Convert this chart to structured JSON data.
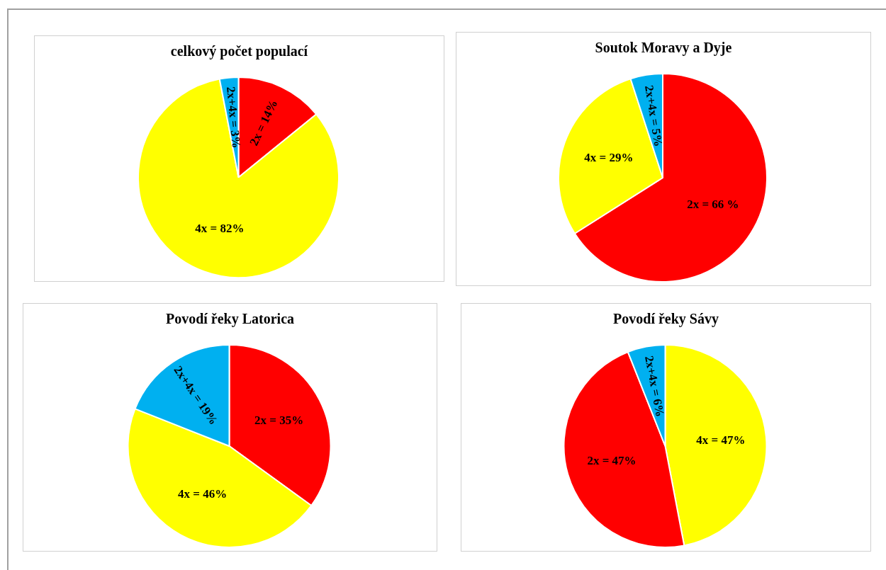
{
  "chart_data": [
    {
      "type": "pie",
      "title": "celkový počet populací",
      "categories": [
        "2x",
        "4x",
        "2x+4x"
      ],
      "values": [
        14,
        82,
        3
      ],
      "colors": [
        "#ff0000",
        "#ffff00",
        "#00b0f0"
      ],
      "value_labels": [
        "= 14%",
        "= 82%",
        "= 3%"
      ],
      "legend": false
    },
    {
      "type": "pie",
      "title": "Soutok Moravy a Dyje",
      "categories": [
        "2x",
        "4x",
        "2x+4x"
      ],
      "values": [
        66,
        29,
        5
      ],
      "colors": [
        "#ff0000",
        "#ffff00",
        "#00b0f0"
      ],
      "value_labels": [
        "= 66 %",
        "= 29%",
        "= 5%"
      ],
      "legend": false
    },
    {
      "type": "pie",
      "title": "Povodí řeky Latorica",
      "categories": [
        "2x",
        "4x",
        "2x+4x"
      ],
      "values": [
        35,
        46,
        19
      ],
      "colors": [
        "#ff0000",
        "#ffff00",
        "#00b0f0"
      ],
      "value_labels": [
        "= 35%",
        "= 46%",
        "= 19%"
      ],
      "legend": false
    },
    {
      "type": "pie",
      "title": "Povodí řeky Sávy",
      "categories": [
        "4x",
        "2x",
        "2x+4x"
      ],
      "values": [
        47,
        47,
        6
      ],
      "colors": [
        "#ffff00",
        "#ff0000",
        "#00b0f0"
      ],
      "value_labels": [
        "= 47%",
        "= 47%",
        "= 6%"
      ],
      "legend": false
    }
  ]
}
